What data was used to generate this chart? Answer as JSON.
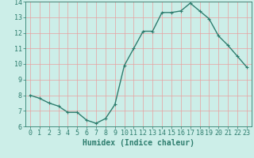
{
  "x": [
    0,
    1,
    2,
    3,
    4,
    5,
    6,
    7,
    8,
    9,
    10,
    11,
    12,
    13,
    14,
    15,
    16,
    17,
    18,
    19,
    20,
    21,
    22,
    23
  ],
  "y": [
    8.0,
    7.8,
    7.5,
    7.3,
    6.9,
    6.9,
    6.4,
    6.2,
    6.5,
    7.4,
    9.9,
    11.0,
    12.1,
    12.1,
    13.3,
    13.3,
    13.4,
    13.9,
    13.4,
    12.9,
    11.8,
    11.2,
    10.5,
    9.8
  ],
  "line_color": "#2e7d6e",
  "marker": "+",
  "marker_size": 3,
  "line_width": 1.0,
  "bg_color": "#cceee8",
  "grid_color": "#e8a0a0",
  "tick_color": "#2e7d6e",
  "xlabel": "Humidex (Indice chaleur)",
  "xlabel_fontsize": 7,
  "ylim": [
    6,
    14
  ],
  "xlim": [
    -0.5,
    23.5
  ],
  "yticks": [
    6,
    7,
    8,
    9,
    10,
    11,
    12,
    13,
    14
  ],
  "xticks": [
    0,
    1,
    2,
    3,
    4,
    5,
    6,
    7,
    8,
    9,
    10,
    11,
    12,
    13,
    14,
    15,
    16,
    17,
    18,
    19,
    20,
    21,
    22,
    23
  ],
  "tick_fontsize": 6
}
